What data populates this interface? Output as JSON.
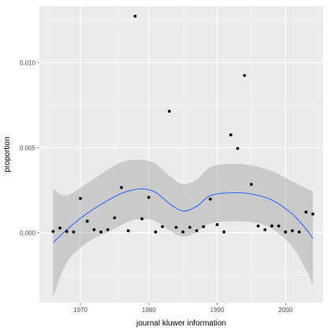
{
  "chart_data": {
    "type": "scatter",
    "title": "",
    "xlabel": "journal kluwer information",
    "ylabel": "proportion",
    "xlim": [
      1964,
      2005.5
    ],
    "ylim": [
      -0.0041,
      0.0133
    ],
    "grid": true,
    "x_ticks": [
      1970,
      1980,
      1990,
      2000
    ],
    "x_tick_labels": [
      "1970",
      "1980",
      "1990",
      "2000"
    ],
    "y_ticks": [
      0.0,
      0.005,
      0.01
    ],
    "y_tick_labels": [
      "0.000",
      "0.005",
      "0.010"
    ],
    "colors": {
      "panel_bg": "#ebebeb",
      "grid_major": "#ffffff",
      "grid_minor": "#f5f5f5",
      "point": "#000000",
      "smooth_line": "#3366ff",
      "ribbon": "#999999"
    },
    "points": [
      {
        "x": 1966,
        "y": 8e-05
      },
      {
        "x": 1967,
        "y": 0.00028
      },
      {
        "x": 1968,
        "y": 8e-05
      },
      {
        "x": 1969,
        "y": 5e-05
      },
      {
        "x": 1970,
        "y": 0.00202
      },
      {
        "x": 1971,
        "y": 0.00068
      },
      {
        "x": 1972,
        "y": 0.00018
      },
      {
        "x": 1973,
        "y": 5e-05
      },
      {
        "x": 1974,
        "y": 0.00018
      },
      {
        "x": 1975,
        "y": 0.00088
      },
      {
        "x": 1976,
        "y": 0.00266
      },
      {
        "x": 1977,
        "y": 0.00012
      },
      {
        "x": 1978,
        "y": 0.01272
      },
      {
        "x": 1979,
        "y": 0.00082
      },
      {
        "x": 1980,
        "y": 0.00208
      },
      {
        "x": 1981,
        "y": 5e-05
      },
      {
        "x": 1982,
        "y": 0.00036
      },
      {
        "x": 1983,
        "y": 0.00714
      },
      {
        "x": 1984,
        "y": 0.00032
      },
      {
        "x": 1985,
        "y": 5e-05
      },
      {
        "x": 1986,
        "y": 0.00032
      },
      {
        "x": 1987,
        "y": 0.00012
      },
      {
        "x": 1988,
        "y": 0.00036
      },
      {
        "x": 1989,
        "y": 0.00198
      },
      {
        "x": 1990,
        "y": 0.00048
      },
      {
        "x": 1991,
        "y": 5e-05
      },
      {
        "x": 1992,
        "y": 0.00575
      },
      {
        "x": 1993,
        "y": 0.00495
      },
      {
        "x": 1994,
        "y": 0.00924
      },
      {
        "x": 1995,
        "y": 0.00284
      },
      {
        "x": 1996,
        "y": 0.0004
      },
      {
        "x": 1997,
        "y": 0.00018
      },
      {
        "x": 1998,
        "y": 0.0004
      },
      {
        "x": 1999,
        "y": 0.0004
      },
      {
        "x": 2000,
        "y": 5e-05
      },
      {
        "x": 2001,
        "y": 0.00012
      },
      {
        "x": 2002,
        "y": 5e-05
      },
      {
        "x": 2003,
        "y": 0.00122
      },
      {
        "x": 2004,
        "y": 0.0011
      }
    ],
    "smooth": [
      {
        "x": 1966,
        "y": -0.00058,
        "lower": -0.00378,
        "upper": 0.00258
      },
      {
        "x": 1968,
        "y": 0.00018,
        "lower": -0.00175,
        "upper": 0.00218
      },
      {
        "x": 1971,
        "y": 0.00115,
        "lower": -0.00058,
        "upper": 0.00292
      },
      {
        "x": 1975,
        "y": 0.00212,
        "lower": 0.00025,
        "upper": 0.00395
      },
      {
        "x": 1977,
        "y": 0.00245,
        "lower": 0.00065,
        "upper": 0.00425
      },
      {
        "x": 1979,
        "y": 0.00258,
        "lower": 0.00082,
        "upper": 0.00428
      },
      {
        "x": 1981,
        "y": 0.00238,
        "lower": 0.00068,
        "upper": 0.00405
      },
      {
        "x": 1983,
        "y": 0.00172,
        "lower": 0.00015,
        "upper": 0.00335
      },
      {
        "x": 1985,
        "y": 0.00128,
        "lower": -0.00022,
        "upper": 0.00285
      },
      {
        "x": 1987,
        "y": 0.00155,
        "lower": 5e-05,
        "upper": 0.00312
      },
      {
        "x": 1989,
        "y": 0.00218,
        "lower": 0.00055,
        "upper": 0.00385
      },
      {
        "x": 1992,
        "y": 0.00235,
        "lower": 0.00068,
        "upper": 0.00405
      },
      {
        "x": 1995,
        "y": 0.00228,
        "lower": 0.00062,
        "upper": 0.00395
      },
      {
        "x": 1998,
        "y": 0.00192,
        "lower": 0.00025,
        "upper": 0.00362
      },
      {
        "x": 2001,
        "y": 0.0011,
        "lower": -0.00082,
        "upper": 0.00302
      },
      {
        "x": 2003,
        "y": 0.00022,
        "lower": -0.00218,
        "upper": 0.00262
      },
      {
        "x": 2004,
        "y": -0.00032,
        "lower": -0.00305,
        "upper": 0.00242
      }
    ]
  }
}
